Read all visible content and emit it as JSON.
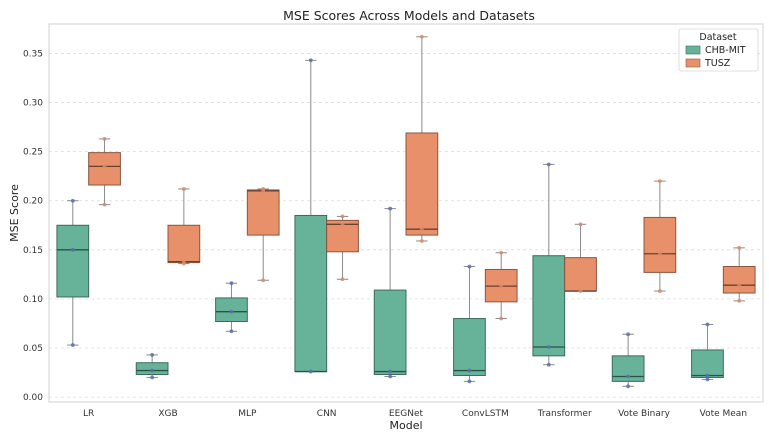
{
  "chart_data": {
    "type": "box",
    "title": "MSE Scores Across Models and Datasets",
    "xlabel": "Model",
    "ylabel": "MSE Score",
    "ylim": [
      -0.005,
      0.38
    ],
    "yticks": [
      0.0,
      0.05,
      0.1,
      0.15,
      0.2,
      0.25,
      0.3,
      0.35
    ],
    "ytick_labels": [
      "0.00",
      "0.05",
      "0.10",
      "0.15",
      "0.20",
      "0.25",
      "0.30",
      "0.35"
    ],
    "grid": "horizontal dashed",
    "legend": {
      "title": "Dataset",
      "position": "top-right"
    },
    "categories": [
      "LR",
      "XGB",
      "MLP",
      "CNN",
      "EEGNet",
      "ConvLSTM",
      "Transformer",
      "Vote Binary",
      "Vote Mean"
    ],
    "series": [
      {
        "name": "CHB-MIT",
        "color": "#66b39a",
        "boxes": [
          {
            "whislo": 0.053,
            "q1": 0.102,
            "med": 0.15,
            "q3": 0.175,
            "whishi": 0.2,
            "points": [
              0.053,
              0.15,
              0.2
            ]
          },
          {
            "whislo": 0.02,
            "q1": 0.023,
            "med": 0.027,
            "q3": 0.035,
            "whishi": 0.043,
            "points": [
              0.02,
              0.027,
              0.043
            ]
          },
          {
            "whislo": 0.067,
            "q1": 0.077,
            "med": 0.087,
            "q3": 0.101,
            "whishi": 0.116,
            "points": [
              0.067,
              0.087,
              0.116
            ]
          },
          {
            "whislo": 0.026,
            "q1": 0.026,
            "med": 0.026,
            "q3": 0.185,
            "whishi": 0.343,
            "points": [
              0.026,
              0.343
            ]
          },
          {
            "whislo": 0.021,
            "q1": 0.023,
            "med": 0.026,
            "q3": 0.109,
            "whishi": 0.192,
            "points": [
              0.021,
              0.026,
              0.192
            ]
          },
          {
            "whislo": 0.016,
            "q1": 0.022,
            "med": 0.027,
            "q3": 0.08,
            "whishi": 0.133,
            "points": [
              0.016,
              0.027,
              0.133
            ]
          },
          {
            "whislo": 0.033,
            "q1": 0.042,
            "med": 0.051,
            "q3": 0.144,
            "whishi": 0.237,
            "points": [
              0.033,
              0.051,
              0.237
            ]
          },
          {
            "whislo": 0.011,
            "q1": 0.016,
            "med": 0.021,
            "q3": 0.042,
            "whishi": 0.064,
            "points": [
              0.011,
              0.021,
              0.064
            ]
          },
          {
            "whislo": 0.018,
            "q1": 0.02,
            "med": 0.022,
            "q3": 0.048,
            "whishi": 0.074,
            "points": [
              0.018,
              0.022,
              0.074
            ]
          }
        ]
      },
      {
        "name": "TUSZ",
        "color": "#e8906a",
        "boxes": [
          {
            "whislo": 0.196,
            "q1": 0.216,
            "med": 0.235,
            "q3": 0.249,
            "whishi": 0.263,
            "points": [
              0.196,
              0.235,
              0.263
            ]
          },
          {
            "whislo": 0.136,
            "q1": 0.137,
            "med": 0.138,
            "q3": 0.175,
            "whishi": 0.212,
            "points": [
              0.136,
              0.138,
              0.212
            ]
          },
          {
            "whislo": 0.119,
            "q1": 0.165,
            "med": 0.21,
            "q3": 0.211,
            "whishi": 0.212,
            "points": [
              0.119,
              0.21,
              0.212
            ]
          },
          {
            "whislo": 0.12,
            "q1": 0.148,
            "med": 0.176,
            "q3": 0.18,
            "whishi": 0.184,
            "points": [
              0.12,
              0.176,
              0.184
            ]
          },
          {
            "whislo": 0.159,
            "q1": 0.165,
            "med": 0.171,
            "q3": 0.269,
            "whishi": 0.367,
            "points": [
              0.159,
              0.171,
              0.367
            ]
          },
          {
            "whislo": 0.08,
            "q1": 0.097,
            "med": 0.113,
            "q3": 0.13,
            "whishi": 0.147,
            "points": [
              0.08,
              0.113,
              0.147
            ]
          },
          {
            "whislo": 0.108,
            "q1": 0.108,
            "med": 0.108,
            "q3": 0.142,
            "whishi": 0.176,
            "points": [
              0.108,
              0.176
            ]
          },
          {
            "whislo": 0.108,
            "q1": 0.127,
            "med": 0.146,
            "q3": 0.183,
            "whishi": 0.22,
            "points": [
              0.108,
              0.146,
              0.22
            ]
          },
          {
            "whislo": 0.098,
            "q1": 0.106,
            "med": 0.114,
            "q3": 0.133,
            "whishi": 0.152,
            "points": [
              0.098,
              0.114,
              0.152
            ]
          }
        ]
      }
    ]
  }
}
